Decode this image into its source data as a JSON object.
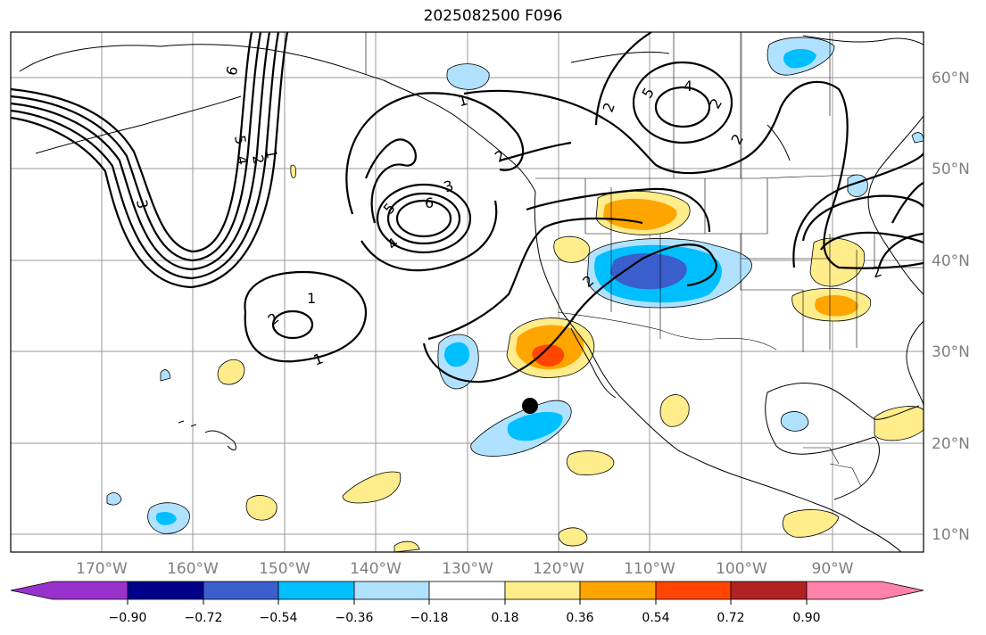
{
  "title": "2025082500 F096",
  "map": {
    "lat_labels": [
      "60°N",
      "50°N",
      "40°N",
      "30°N",
      "20°N",
      "10°N"
    ],
    "lon_labels": [
      "170°W",
      "160°W",
      "150°W",
      "140°W",
      "130°W",
      "120°W",
      "110°W",
      "100°W",
      "90°W"
    ],
    "marker": {
      "name": "point-marker",
      "color": "#000000"
    }
  },
  "contour_labels": [
    "6",
    "5",
    "4",
    "3",
    "2",
    "1",
    "6",
    "5",
    "4",
    "3",
    "2",
    "1",
    "2",
    "1",
    "1",
    "2",
    "2",
    "5",
    "4",
    "2",
    "2",
    "2"
  ],
  "colorbar": {
    "ticks": [
      "−0.90",
      "−0.72",
      "−0.54",
      "−0.36",
      "−0.18",
      "0.18",
      "0.36",
      "0.54",
      "0.72",
      "0.90"
    ],
    "colors": [
      "#9932cc",
      "#00008b",
      "#3a5fcd",
      "#00bfff",
      "#b0e2ff",
      "#ffffff",
      "#ffec8b",
      "#ffa500",
      "#ff4500",
      "#b22222",
      "#ff82ab"
    ]
  }
}
